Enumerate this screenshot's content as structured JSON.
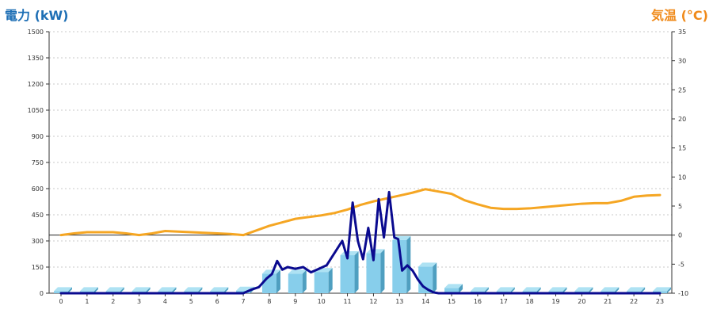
{
  "chart_data": {
    "type": "bar",
    "x": [
      "0",
      "1",
      "2",
      "3",
      "4",
      "5",
      "6",
      "7",
      "8",
      "9",
      "10",
      "11",
      "12",
      "13",
      "14",
      "15",
      "16",
      "17",
      "18",
      "19",
      "20",
      "21",
      "22",
      "23"
    ],
    "ylabel_left": "電力 (kW)",
    "ylabel_right": "気温 (°C)",
    "y_left_range": [
      0,
      1500
    ],
    "y_left_ticks": [
      "0",
      "150",
      "300",
      "450",
      "600",
      "750",
      "900",
      "1050",
      "1200",
      "1350",
      "1500"
    ],
    "y_right_range": [
      -10,
      35
    ],
    "y_right_ticks": [
      "-10",
      "-5",
      "0",
      "5",
      "10",
      "15",
      "20",
      "25",
      "30",
      "35"
    ],
    "grid": true,
    "series": [
      {
        "kind": "bar",
        "axis": "left",
        "color": "#87ceeb",
        "hours": [
          0,
          1,
          2,
          3,
          4,
          5,
          6,
          7,
          8,
          9,
          10,
          11,
          12,
          13,
          14,
          15,
          16,
          17,
          18,
          19,
          20,
          21,
          22,
          23
        ],
        "values": [
          12,
          12,
          12,
          12,
          12,
          12,
          12,
          15,
          112,
          112,
          122,
          218,
          230,
          305,
          153,
          30,
          12,
          12,
          12,
          12,
          12,
          12,
          12,
          12
        ]
      },
      {
        "kind": "line",
        "axis": "left",
        "color": "#0a0a8f",
        "x": [
          0,
          1,
          2,
          3,
          4,
          5,
          6,
          7,
          7.3,
          7.6,
          7.9,
          8.1,
          8.3,
          8.5,
          8.7,
          9.0,
          9.3,
          9.6,
          9.9,
          10.2,
          10.5,
          10.8,
          11.0,
          11.2,
          11.4,
          11.6,
          11.8,
          12.0,
          12.2,
          12.4,
          12.6,
          12.8,
          12.95,
          13.1,
          13.3,
          13.5,
          13.7,
          13.9,
          14.1,
          14.3,
          14.5,
          14.8,
          15.0,
          15.2,
          16,
          17,
          18,
          19,
          20,
          21,
          22,
          23
        ],
        "y": [
          0,
          0,
          0,
          0,
          0,
          0,
          0,
          0,
          20,
          35,
          85,
          110,
          185,
          135,
          150,
          140,
          150,
          120,
          140,
          160,
          230,
          300,
          200,
          520,
          300,
          195,
          375,
          190,
          540,
          320,
          580,
          320,
          310,
          130,
          160,
          130,
          80,
          40,
          20,
          5,
          0,
          0,
          0,
          0,
          0,
          0,
          0,
          0,
          0,
          0,
          0,
          0
        ]
      },
      {
        "kind": "line",
        "axis": "right",
        "color": "#f5a623",
        "x": [
          0,
          0.5,
          1,
          1.5,
          2,
          2.5,
          3,
          3.5,
          4,
          4.5,
          5,
          5.5,
          6,
          6.5,
          7,
          7.5,
          8,
          8.5,
          9,
          9.5,
          10,
          10.5,
          11,
          11.5,
          12,
          12.5,
          13,
          13.5,
          14,
          14.5,
          15,
          15.5,
          16,
          16.5,
          17,
          17.5,
          18,
          18.5,
          19,
          19.5,
          20,
          20.5,
          21,
          21.5,
          22,
          22.5,
          23
        ],
        "y": [
          0,
          0.3,
          0.5,
          0.5,
          0.5,
          0.3,
          0,
          0.3,
          0.7,
          0.6,
          0.5,
          0.4,
          0.3,
          0.2,
          0,
          0.8,
          1.6,
          2.2,
          2.8,
          3.1,
          3.4,
          3.8,
          4.4,
          5.2,
          5.8,
          6.3,
          6.8,
          7.3,
          7.9,
          7.5,
          7.1,
          6.0,
          5.3,
          4.7,
          4.5,
          4.5,
          4.6,
          4.8,
          5.0,
          5.2,
          5.4,
          5.5,
          5.5,
          5.9,
          6.6,
          6.8,
          6.9
        ]
      }
    ]
  }
}
